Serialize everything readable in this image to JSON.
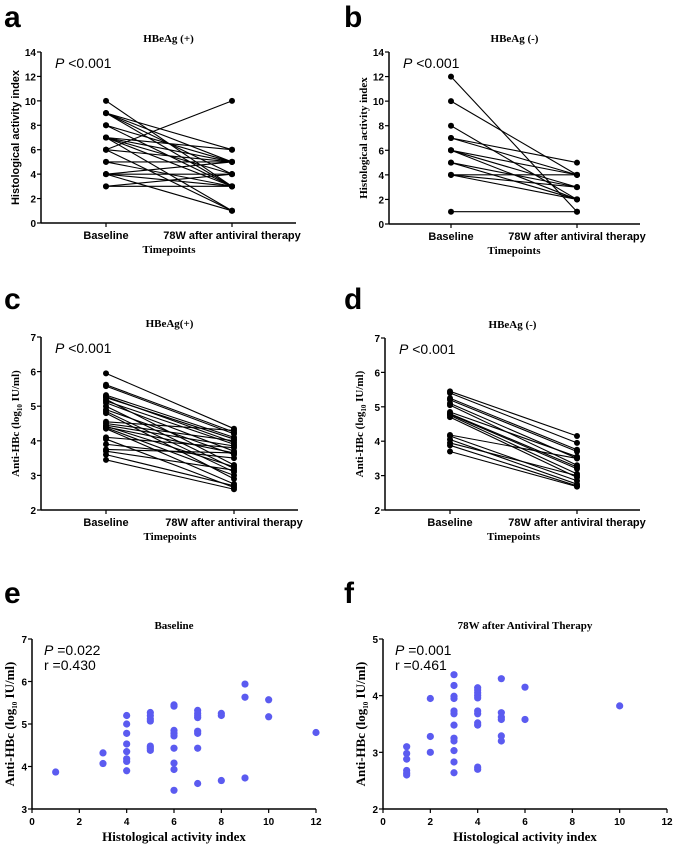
{
  "chart_data": [
    {
      "panel": "a",
      "type": "line",
      "title": "HBeAg (+)",
      "ylabel": "Histological activity index",
      "xlabel": "Timepoints",
      "categories": [
        "Baseline",
        "78W after antiviral therapy"
      ],
      "ylim": [
        0,
        14
      ],
      "yticks": [
        0,
        2,
        4,
        6,
        8,
        10,
        12,
        14
      ],
      "annotation": [
        "P <0.001"
      ],
      "pairs": [
        [
          10,
          3
        ],
        [
          9,
          5
        ],
        [
          9,
          3
        ],
        [
          9,
          4
        ],
        [
          9,
          6
        ],
        [
          8,
          5
        ],
        [
          8,
          3
        ],
        [
          7,
          6
        ],
        [
          7,
          3
        ],
        [
          7,
          1
        ],
        [
          7,
          4
        ],
        [
          7,
          5
        ],
        [
          6,
          10
        ],
        [
          6,
          5
        ],
        [
          6,
          1
        ],
        [
          5,
          5
        ],
        [
          5,
          3
        ],
        [
          4,
          5
        ],
        [
          4,
          4
        ],
        [
          4,
          3
        ],
        [
          4,
          1
        ],
        [
          3,
          3
        ],
        [
          3,
          4
        ]
      ]
    },
    {
      "panel": "b",
      "type": "line",
      "title": "HBeAg (-)",
      "ylabel": "Histological activity index",
      "xlabel": "Timepoints",
      "categories": [
        "Baseline",
        "78W after antiviral therapy"
      ],
      "ylim": [
        0,
        14
      ],
      "yticks": [
        0,
        2,
        4,
        6,
        8,
        10,
        12,
        14
      ],
      "annotation": [
        "P <0.001"
      ],
      "pairs": [
        [
          12,
          1
        ],
        [
          10,
          4
        ],
        [
          8,
          2
        ],
        [
          7,
          5
        ],
        [
          7,
          4
        ],
        [
          6,
          4
        ],
        [
          6,
          3
        ],
        [
          6,
          2
        ],
        [
          5,
          3
        ],
        [
          5,
          2
        ],
        [
          4,
          4
        ],
        [
          4,
          2
        ],
        [
          4,
          3
        ],
        [
          1,
          1
        ]
      ]
    },
    {
      "panel": "c",
      "type": "line",
      "title": "HBeAg(+)",
      "ylabel": "Anti-HBc (log10 IU/ml)",
      "xlabel": "Timepoints",
      "categories": [
        "Baseline",
        "78W after antiviral therapy"
      ],
      "ylim": [
        2,
        7
      ],
      "yticks": [
        2,
        3,
        4,
        5,
        6,
        7
      ],
      "annotation": [
        "P <0.001"
      ],
      "pairs": [
        [
          5.95,
          4.35
        ],
        [
          5.62,
          4.25
        ],
        [
          5.58,
          4.2
        ],
        [
          5.32,
          4.1
        ],
        [
          5.28,
          3.95
        ],
        [
          5.25,
          4.05
        ],
        [
          5.2,
          3.3
        ],
        [
          5.15,
          3.9
        ],
        [
          5.1,
          3.7
        ],
        [
          5.0,
          3.2
        ],
        [
          4.9,
          3.6
        ],
        [
          4.85,
          3.1
        ],
        [
          4.8,
          2.9
        ],
        [
          4.55,
          4.3
        ],
        [
          4.5,
          4.0
        ],
        [
          4.45,
          3.85
        ],
        [
          4.42,
          3.25
        ],
        [
          4.4,
          3.65
        ],
        [
          4.38,
          3.0
        ],
        [
          4.35,
          2.75
        ],
        [
          4.1,
          3.8
        ],
        [
          4.05,
          2.65
        ],
        [
          3.9,
          3.5
        ],
        [
          3.75,
          3.65
        ],
        [
          3.7,
          3.15
        ],
        [
          3.6,
          2.7
        ],
        [
          3.45,
          2.6
        ]
      ]
    },
    {
      "panel": "d",
      "type": "line",
      "title": "HBeAg (-)",
      "ylabel": "Anti-HBc (log10 IU/ml)",
      "xlabel": "Timepoints",
      "categories": [
        "Baseline",
        "78W after antiviral therapy"
      ],
      "ylim": [
        2,
        7
      ],
      "yticks": [
        2,
        3,
        4,
        5,
        6,
        7
      ],
      "annotation": [
        "P <0.001"
      ],
      "pairs": [
        [
          5.45,
          4.15
        ],
        [
          5.4,
          3.95
        ],
        [
          5.25,
          3.75
        ],
        [
          5.2,
          3.7
        ],
        [
          5.1,
          3.5
        ],
        [
          5.05,
          3.3
        ],
        [
          4.85,
          3.55
        ],
        [
          4.8,
          3.25
        ],
        [
          4.78,
          3.2
        ],
        [
          4.75,
          3.05
        ],
        [
          4.7,
          2.95
        ],
        [
          4.18,
          3.5
        ],
        [
          4.15,
          2.85
        ],
        [
          4.05,
          2.75
        ],
        [
          3.95,
          3.0
        ],
        [
          3.88,
          2.7
        ],
        [
          3.7,
          2.68
        ]
      ]
    },
    {
      "panel": "e",
      "type": "scatter",
      "title": "Baseline",
      "ylabel": "Anti-HBc (log10 IU/ml)",
      "xlabel": "Histological activity index",
      "xlim": [
        0,
        12
      ],
      "xticks": [
        0,
        2,
        4,
        6,
        8,
        10,
        12
      ],
      "ylim": [
        3,
        7
      ],
      "yticks": [
        3,
        4,
        5,
        6,
        7
      ],
      "annotation": [
        "P =0.022",
        "r =0.430"
      ],
      "color": "#5b5bf0",
      "points": [
        [
          1,
          3.87
        ],
        [
          3,
          4.32
        ],
        [
          3,
          4.07
        ],
        [
          4,
          5.2
        ],
        [
          4,
          5.0
        ],
        [
          4,
          4.78
        ],
        [
          4,
          4.53
        ],
        [
          4,
          4.35
        ],
        [
          4,
          4.18
        ],
        [
          4,
          4.12
        ],
        [
          4,
          3.9
        ],
        [
          5,
          5.27
        ],
        [
          5,
          5.2
        ],
        [
          5,
          5.12
        ],
        [
          5,
          5.07
        ],
        [
          5,
          4.48
        ],
        [
          5,
          4.43
        ],
        [
          5,
          4.38
        ],
        [
          6,
          5.45
        ],
        [
          6,
          5.42
        ],
        [
          6,
          4.85
        ],
        [
          6,
          4.78
        ],
        [
          6,
          4.72
        ],
        [
          6,
          4.43
        ],
        [
          6,
          4.08
        ],
        [
          6,
          3.93
        ],
        [
          6,
          3.44
        ],
        [
          7,
          5.32
        ],
        [
          7,
          5.25
        ],
        [
          7,
          5.2
        ],
        [
          7,
          5.15
        ],
        [
          7,
          4.83
        ],
        [
          7,
          4.78
        ],
        [
          7,
          4.43
        ],
        [
          7,
          3.6
        ],
        [
          8,
          5.25
        ],
        [
          8,
          5.2
        ],
        [
          8,
          3.67
        ],
        [
          9,
          5.94
        ],
        [
          9,
          5.63
        ],
        [
          9,
          3.73
        ],
        [
          10,
          5.57
        ],
        [
          10,
          5.17
        ],
        [
          12,
          4.8
        ]
      ]
    },
    {
      "panel": "f",
      "type": "scatter",
      "title": "78W after Antiviral Therapy",
      "ylabel": "Anti-HBc (log10 IU/ml)",
      "xlabel": "Histological activity index",
      "xlim": [
        0,
        12
      ],
      "xticks": [
        0,
        2,
        4,
        6,
        8,
        10,
        12
      ],
      "ylim": [
        2,
        5
      ],
      "yticks": [
        2,
        3,
        4,
        5
      ],
      "annotation": [
        "P =0.001",
        "r =0.461"
      ],
      "color": "#5b5bf0",
      "points": [
        [
          1,
          3.1
        ],
        [
          1,
          2.98
        ],
        [
          1,
          2.88
        ],
        [
          1,
          2.68
        ],
        [
          1,
          2.63
        ],
        [
          1,
          2.6
        ],
        [
          2,
          3.95
        ],
        [
          2,
          3.28
        ],
        [
          2,
          3.0
        ],
        [
          3,
          4.37
        ],
        [
          3,
          4.18
        ],
        [
          3,
          3.99
        ],
        [
          3,
          3.95
        ],
        [
          3,
          3.73
        ],
        [
          3,
          3.68
        ],
        [
          3,
          3.48
        ],
        [
          3,
          3.25
        ],
        [
          3,
          3.2
        ],
        [
          3,
          3.03
        ],
        [
          3,
          2.83
        ],
        [
          3,
          2.64
        ],
        [
          4,
          4.14
        ],
        [
          4,
          4.1
        ],
        [
          4,
          4.05
        ],
        [
          4,
          4.0
        ],
        [
          4,
          3.96
        ],
        [
          4,
          3.73
        ],
        [
          4,
          3.68
        ],
        [
          4,
          3.52
        ],
        [
          4,
          3.48
        ],
        [
          4,
          2.74
        ],
        [
          4,
          2.7
        ],
        [
          5,
          4.3
        ],
        [
          5,
          3.7
        ],
        [
          5,
          3.62
        ],
        [
          5,
          3.58
        ],
        [
          5,
          3.29
        ],
        [
          5,
          3.2
        ],
        [
          6,
          4.15
        ],
        [
          6,
          3.58
        ],
        [
          10,
          3.82
        ]
      ]
    }
  ]
}
